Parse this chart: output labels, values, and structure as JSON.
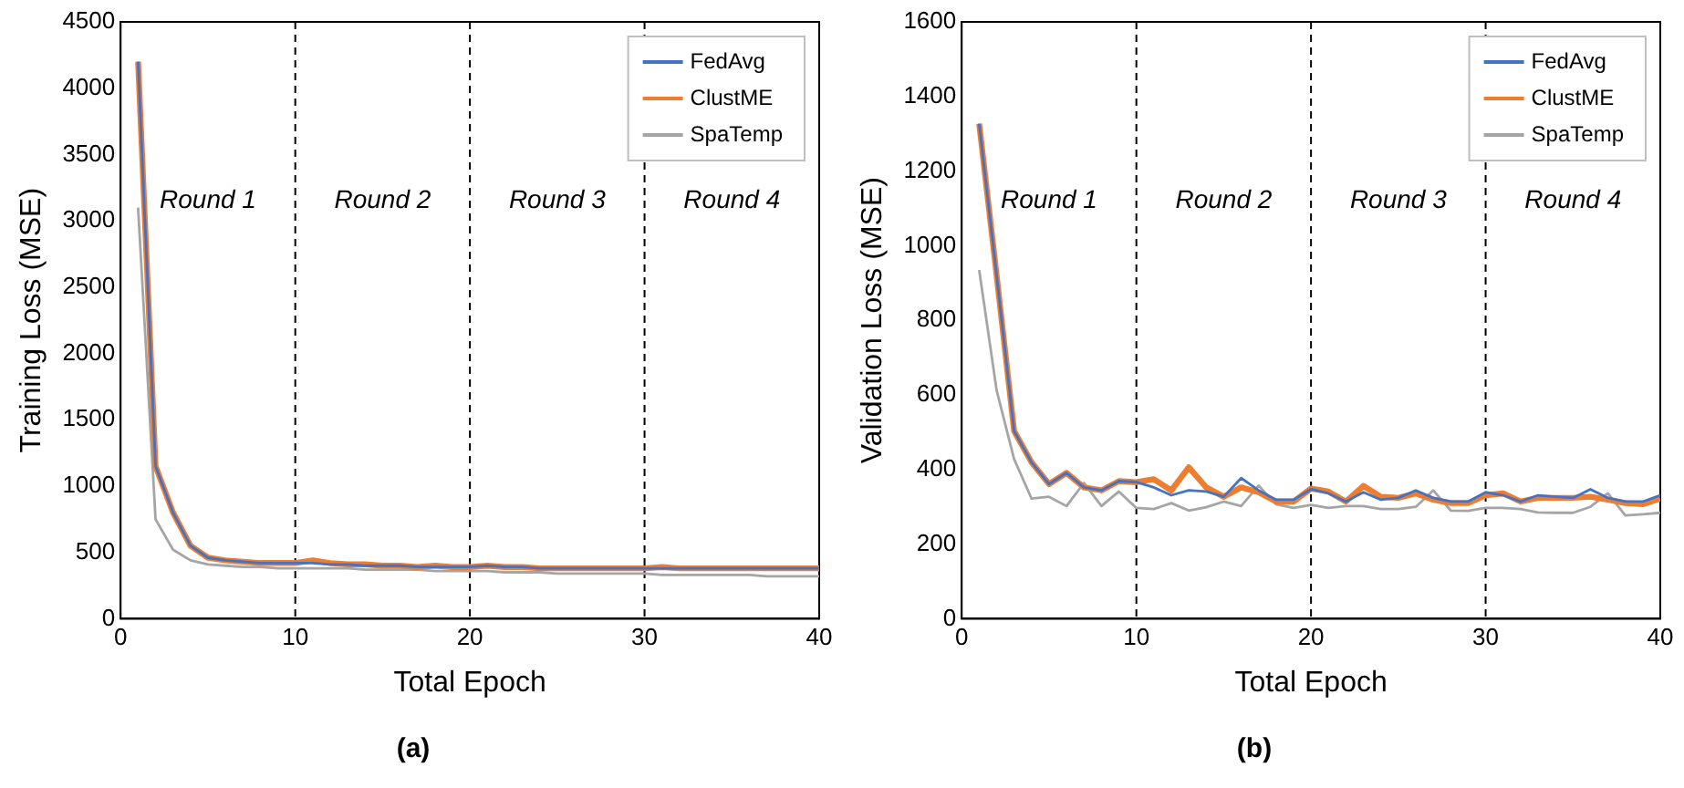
{
  "chart_data": [
    {
      "type": "line",
      "title": "(a)",
      "xlabel": "Total Epoch",
      "ylabel": "Training Loss (MSE)",
      "xlim": [
        0,
        40
      ],
      "xticks": [
        0,
        10,
        20,
        30,
        40
      ],
      "ylim": [
        0,
        4500
      ],
      "yticks": [
        0,
        500,
        1000,
        1500,
        2000,
        2500,
        3000,
        3500,
        4000,
        4500
      ],
      "grid": false,
      "legend": "top right",
      "x": [
        1,
        2,
        3,
        4,
        5,
        6,
        7,
        8,
        9,
        10,
        11,
        12,
        13,
        14,
        15,
        16,
        17,
        18,
        19,
        20,
        21,
        22,
        23,
        24,
        25,
        26,
        27,
        28,
        29,
        30,
        31,
        32,
        33,
        34,
        35,
        36,
        37,
        38,
        39,
        40
      ],
      "series": [
        {
          "name": "FedAvg",
          "color": "#4472c4",
          "values": [
            4200,
            1150,
            800,
            550,
            460,
            440,
            430,
            420,
            420,
            420,
            420,
            410,
            410,
            400,
            400,
            400,
            390,
            390,
            390,
            390,
            400,
            390,
            390,
            380,
            380,
            380,
            380,
            380,
            380,
            380,
            380,
            380,
            380,
            380,
            380,
            380,
            380,
            380,
            380,
            380
          ]
        },
        {
          "name": "ClustME",
          "color": "#ed7d31",
          "values": [
            4200,
            1150,
            800,
            550,
            460,
            440,
            430,
            420,
            420,
            420,
            440,
            420,
            410,
            410,
            400,
            400,
            390,
            400,
            390,
            390,
            400,
            390,
            390,
            380,
            380,
            380,
            380,
            380,
            380,
            380,
            390,
            380,
            380,
            380,
            380,
            380,
            380,
            380,
            380,
            380
          ]
        },
        {
          "name": "SpaTemp",
          "color": "#a5a5a5",
          "values": [
            3100,
            750,
            520,
            440,
            410,
            400,
            390,
            390,
            380,
            380,
            380,
            380,
            380,
            370,
            370,
            370,
            370,
            360,
            360,
            360,
            360,
            350,
            350,
            350,
            340,
            340,
            340,
            340,
            340,
            340,
            330,
            330,
            330,
            330,
            330,
            330,
            320,
            320,
            320,
            320
          ]
        }
      ],
      "ref_lines": [
        {
          "axis": "x",
          "value": 10,
          "color": "#000000",
          "line_style": "dashed"
        },
        {
          "axis": "x",
          "value": 20,
          "color": "#000000",
          "line_style": "dashed"
        },
        {
          "axis": "x",
          "value": 30,
          "color": "#000000",
          "line_style": "dashed"
        }
      ],
      "annotations": [
        "Round 1",
        "Round 2",
        "Round 3",
        "Round 4"
      ]
    },
    {
      "type": "line",
      "title": "(b)",
      "xlabel": "Total Epoch",
      "ylabel": "Validation Loss (MSE)",
      "xlim": [
        0,
        40
      ],
      "xticks": [
        0,
        10,
        20,
        30,
        40
      ],
      "ylim": [
        0,
        1600
      ],
      "yticks": [
        0,
        200,
        400,
        600,
        800,
        1000,
        1200,
        1400,
        1600
      ],
      "grid": false,
      "legend": "top right",
      "x": [
        1,
        2,
        3,
        4,
        5,
        6,
        7,
        8,
        9,
        10,
        11,
        12,
        13,
        14,
        15,
        16,
        17,
        18,
        19,
        20,
        21,
        22,
        23,
        24,
        25,
        26,
        27,
        28,
        29,
        30,
        31,
        32,
        33,
        34,
        35,
        36,
        37,
        38,
        39,
        40
      ],
      "series": [
        {
          "name": "FedAvg",
          "color": "#4472c4",
          "values": [
            1327,
            920,
            503,
            419,
            361,
            391,
            352,
            344,
            369,
            366,
            352,
            331,
            344,
            341,
            327,
            377,
            344,
            319,
            319,
            347,
            336,
            314,
            339,
            319,
            324,
            344,
            324,
            314,
            314,
            339,
            331,
            314,
            331,
            327,
            324,
            347,
            324,
            314,
            314,
            331
          ]
        },
        {
          "name": "ClustME",
          "color": "#ed7d31",
          "values": [
            1327,
            920,
            503,
            419,
            361,
            391,
            352,
            344,
            369,
            366,
            374,
            344,
            406,
            352,
            327,
            352,
            339,
            314,
            314,
            349,
            341,
            314,
            356,
            327,
            324,
            336,
            319,
            310,
            310,
            331,
            336,
            314,
            324,
            324,
            324,
            327,
            319,
            310,
            307,
            322
          ]
        },
        {
          "name": "SpaTemp",
          "color": "#a5a5a5",
          "values": [
            935,
            612,
            428,
            322,
            327,
            302,
            364,
            302,
            341,
            297,
            294,
            310,
            290,
            299,
            314,
            302,
            357,
            307,
            297,
            305,
            297,
            302,
            302,
            294,
            294,
            300,
            344,
            290,
            289,
            297,
            297,
            294,
            285,
            284,
            284,
            300,
            336,
            277,
            280,
            284
          ]
        }
      ],
      "ref_lines": [
        {
          "axis": "x",
          "value": 10,
          "color": "#000000",
          "line_style": "dashed"
        },
        {
          "axis": "x",
          "value": 20,
          "color": "#000000",
          "line_style": "dashed"
        },
        {
          "axis": "x",
          "value": 30,
          "color": "#000000",
          "line_style": "dashed"
        }
      ],
      "annotations": [
        "Round 1",
        "Round 2",
        "Round 3",
        "Round 4"
      ]
    }
  ]
}
